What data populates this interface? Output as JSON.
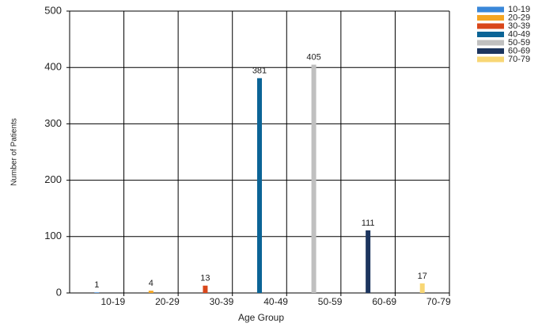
{
  "chart_data": {
    "type": "bar",
    "categories": [
      "10-19",
      "20-29",
      "30-39",
      "40-49",
      "50-59",
      "60-69",
      "70-79"
    ],
    "series": [
      {
        "name": "10-19",
        "color": "#3a87d9",
        "values": [
          1,
          null,
          null,
          null,
          null,
          null,
          null
        ]
      },
      {
        "name": "20-29",
        "color": "#f5a623",
        "values": [
          null,
          4,
          null,
          null,
          null,
          null,
          null
        ]
      },
      {
        "name": "30-39",
        "color": "#d9471b",
        "values": [
          null,
          null,
          13,
          null,
          null,
          null,
          null
        ]
      },
      {
        "name": "40-49",
        "color": "#0b6496",
        "values": [
          null,
          null,
          null,
          381,
          null,
          null,
          null
        ]
      },
      {
        "name": "50-59",
        "color": "#c0c0c0",
        "values": [
          null,
          null,
          null,
          null,
          405,
          null,
          null
        ]
      },
      {
        "name": "60-69",
        "color": "#1c355e",
        "values": [
          null,
          null,
          null,
          null,
          null,
          111,
          null
        ]
      },
      {
        "name": "70-79",
        "color": "#f8d775",
        "values": [
          null,
          null,
          null,
          null,
          null,
          null,
          17
        ]
      }
    ],
    "xlabel": "Age Group",
    "ylabel": "Number of Patients",
    "ylim": [
      0,
      500
    ],
    "yticks": [
      0,
      100,
      200,
      300,
      400,
      500
    ],
    "grid": true,
    "legend": "right"
  }
}
